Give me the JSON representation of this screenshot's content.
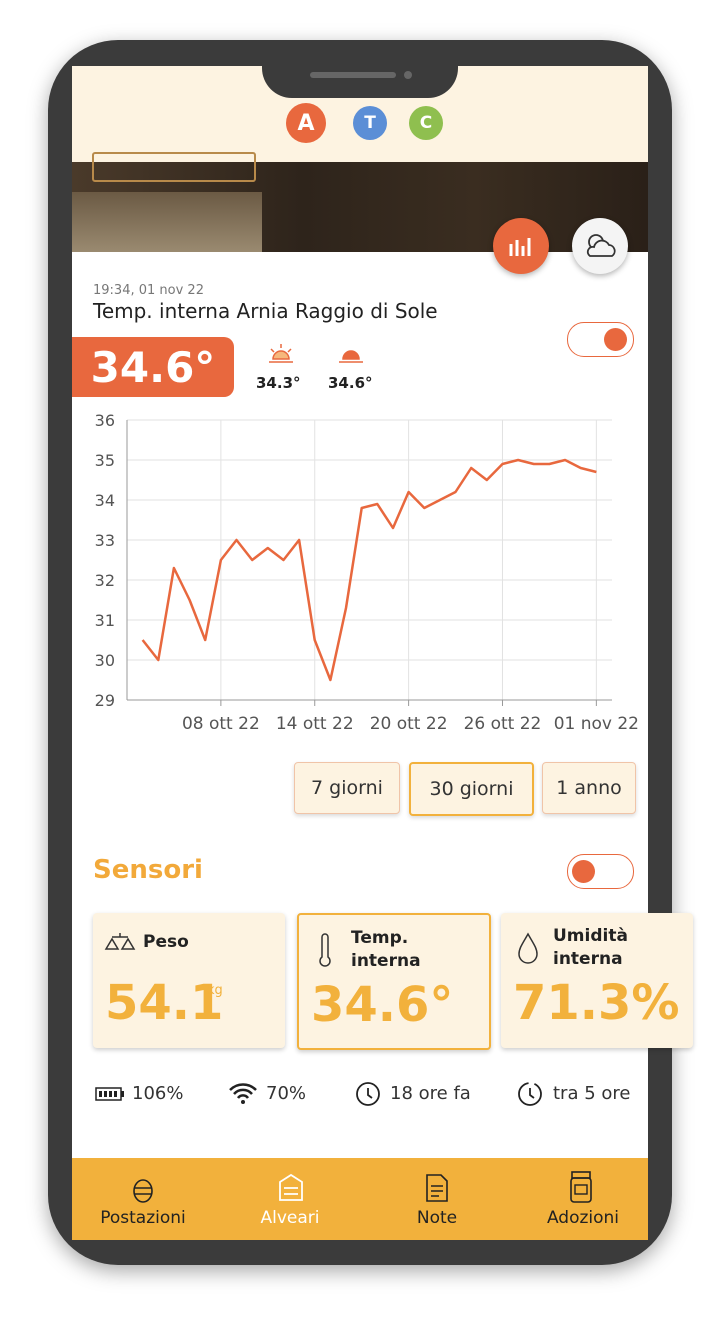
{
  "tabs": [
    "A",
    "T",
    "C"
  ],
  "reading": {
    "time": "19:34, 01 nov 22",
    "title": "Temp. interna Arnia Raggio di Sole",
    "value": "34.6°",
    "min": "34.3°",
    "max": "34.6°"
  },
  "chart_data": {
    "type": "line",
    "color": "#e8683e",
    "x": [
      "2022-10-03",
      "2022-10-04",
      "2022-10-05",
      "2022-10-06",
      "2022-10-07",
      "2022-10-08",
      "2022-10-09",
      "2022-10-10",
      "2022-10-11",
      "2022-10-12",
      "2022-10-13",
      "2022-10-14",
      "2022-10-15",
      "2022-10-16",
      "2022-10-17",
      "2022-10-18",
      "2022-10-19",
      "2022-10-20",
      "2022-10-21",
      "2022-10-22",
      "2022-10-23",
      "2022-10-24",
      "2022-10-25",
      "2022-10-26",
      "2022-10-27",
      "2022-10-28",
      "2022-10-29",
      "2022-10-30",
      "2022-10-31",
      "2022-11-01"
    ],
    "values": [
      30.5,
      30.0,
      32.3,
      31.5,
      30.5,
      32.5,
      33.0,
      32.5,
      32.8,
      32.5,
      33.0,
      30.5,
      29.5,
      31.3,
      33.8,
      33.9,
      33.3,
      34.2,
      33.8,
      34.0,
      34.2,
      34.8,
      34.5,
      34.9,
      35.0,
      34.9,
      34.9,
      35.0,
      34.8,
      34.7
    ],
    "xlim": [
      "2022-10-02",
      "2022-11-02"
    ],
    "xticks": [
      {
        "value": "2022-10-08",
        "label": "08 ott 22"
      },
      {
        "value": "2022-10-14",
        "label": "14 ott 22"
      },
      {
        "value": "2022-10-20",
        "label": "20 ott 22"
      },
      {
        "value": "2022-10-26",
        "label": "26 ott 22"
      },
      {
        "value": "2022-11-01",
        "label": "01 nov 22"
      }
    ],
    "ylim": [
      29,
      36
    ],
    "yticks": [
      29,
      30,
      31,
      32,
      33,
      34,
      35,
      36
    ],
    "grid": true
  },
  "ranges": [
    "7 giorni",
    "30 giorni",
    "1 anno"
  ],
  "sensors": {
    "title": "Sensori",
    "cards": [
      {
        "label": "Peso",
        "value": "54.1",
        "unit": "kg"
      },
      {
        "label": "Temp. interna",
        "value": "34.6°"
      },
      {
        "label": "Umidità interna",
        "value": "71.3%"
      }
    ],
    "status": [
      "106%",
      "70%",
      "18 ore fa",
      "tra 5 ore"
    ]
  },
  "nav": [
    "Postazioni",
    "Alveari",
    "Note",
    "Adozioni"
  ]
}
